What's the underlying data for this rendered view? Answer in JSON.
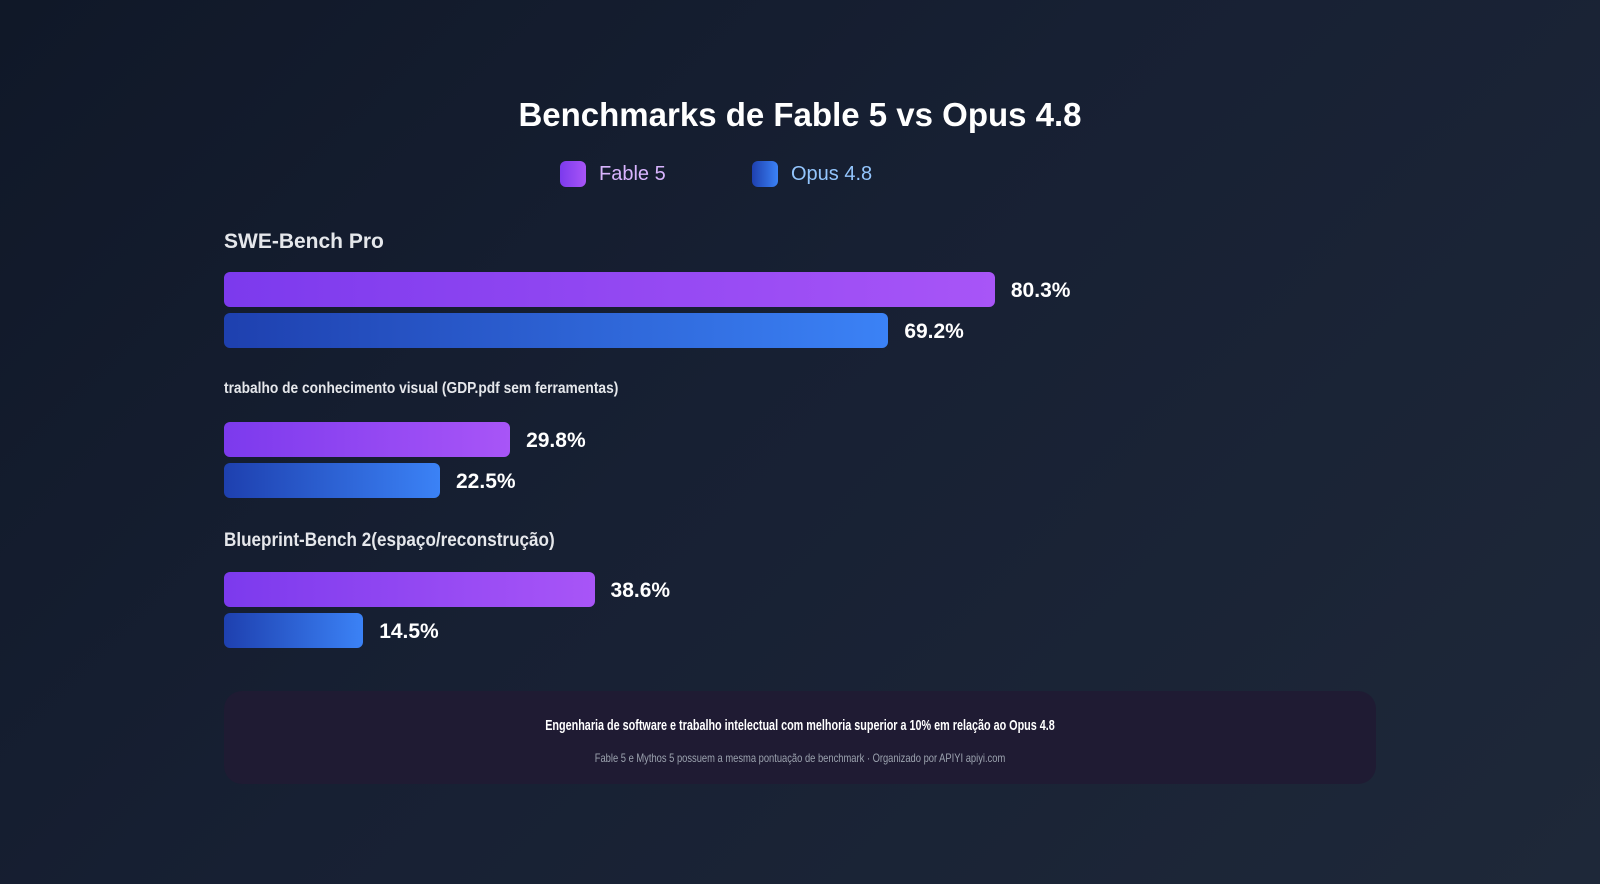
{
  "chart_data": {
    "type": "bar",
    "orientation": "horizontal",
    "title": "Benchmarks de Fable 5 vs Opus 4.8",
    "categories": [
      "SWE-Bench Pro",
      "trabalho de conhecimento visual (GDP.pdf sem ferramentas)",
      "Blueprint-Bench 2(espaço/reconstrução)"
    ],
    "series": [
      {
        "name": "Fable 5",
        "values": [
          80.3,
          29.8,
          38.6
        ],
        "value_labels": [
          "80.3%",
          "29.8%",
          "38.6%"
        ],
        "color_start": "#7c3aed",
        "color_end": "#a855f7"
      },
      {
        "name": "Opus 4.8",
        "values": [
          69.2,
          22.5,
          14.5
        ],
        "value_labels": [
          "69.2%",
          "22.5%",
          "14.5%"
        ],
        "color_start": "#1e40af",
        "color_end": "#3b82f6"
      }
    ],
    "xlim": [
      0,
      100
    ],
    "grid": false,
    "legend_position": "top-center"
  },
  "note": {
    "main": "Engenharia de software e trabalho intelectual com melhoria superior a 10% em relação ao Opus 4.8",
    "sub": "Fable 5 e Mythos 5 possuem a mesma pontuação de benchmark · Organizado por APIYI apiyi.com"
  }
}
